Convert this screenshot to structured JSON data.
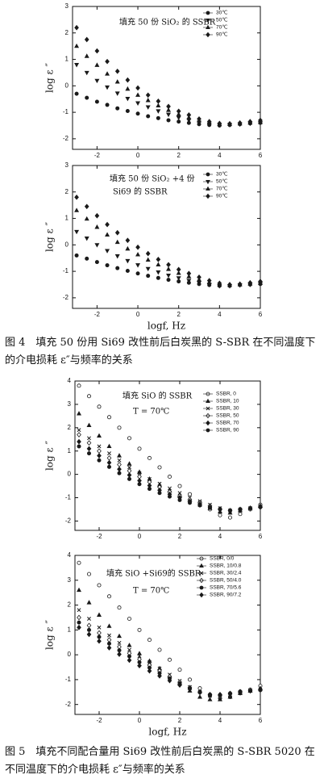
{
  "chart_data": [
    {
      "type": "scatter",
      "ylabel": "log ε ″",
      "annotations": [
        "填充 50 份 SiO₂ 的 SSBR"
      ],
      "x": [
        -3,
        -2.5,
        -2,
        -1.5,
        -1,
        -0.5,
        0,
        0.5,
        1,
        1.5,
        2,
        2.5,
        3,
        3.5,
        4,
        4.5,
        5,
        5.5,
        6
      ],
      "xlim": [
        -3.2,
        6
      ],
      "xticks": [
        -2,
        0,
        2,
        4,
        6
      ],
      "ylim": [
        -2.4,
        3
      ],
      "yticks": [
        3,
        2,
        1,
        0,
        -1,
        -2
      ],
      "series": [
        {
          "name": "30℃",
          "color": "#1a1a1a",
          "marker": "circle",
          "values": [
            -0.3,
            -0.45,
            -0.6,
            -0.72,
            -0.85,
            -0.95,
            -1.05,
            -1.15,
            -1.22,
            -1.3,
            -1.35,
            -1.4,
            -1.45,
            -1.48,
            -1.5,
            -1.48,
            -1.45,
            -1.42,
            -1.4
          ]
        },
        {
          "name": "50℃",
          "color": "#1a1a1a",
          "marker": "triangle-down",
          "values": [
            0.8,
            0.5,
            0.2,
            -0.05,
            -0.28,
            -0.48,
            -0.65,
            -0.8,
            -0.95,
            -1.08,
            -1.2,
            -1.3,
            -1.38,
            -1.45,
            -1.48,
            -1.47,
            -1.45,
            -1.42,
            -1.4
          ]
        },
        {
          "name": "70℃",
          "color": "#1a1a1a",
          "marker": "triangle",
          "values": [
            1.5,
            1.12,
            0.78,
            0.45,
            0.15,
            -0.12,
            -0.35,
            -0.55,
            -0.75,
            -0.92,
            -1.08,
            -1.2,
            -1.32,
            -1.4,
            -1.45,
            -1.45,
            -1.43,
            -1.4,
            -1.38
          ]
        },
        {
          "name": "90℃",
          "color": "#1a1a1a",
          "marker": "diamond",
          "values": [
            2.2,
            1.75,
            1.32,
            0.92,
            0.55,
            0.22,
            -0.08,
            -0.35,
            -0.58,
            -0.78,
            -0.96,
            -1.1,
            -1.25,
            -1.35,
            -1.42,
            -1.43,
            -1.4,
            -1.35,
            -1.3
          ]
        }
      ]
    },
    {
      "type": "scatter",
      "ylabel": "log ε ″",
      "xlabel": "logf, Hz",
      "annotations": [
        "填充 50 份 SiO₂ +4 份",
        "Si69 的 SSBR"
      ],
      "x": [
        -3,
        -2.5,
        -2,
        -1.5,
        -1,
        -0.5,
        0,
        0.5,
        1,
        1.5,
        2,
        2.5,
        3,
        3.5,
        4,
        4.5,
        5,
        5.5,
        6
      ],
      "xlim": [
        -3.2,
        6
      ],
      "xticks": [
        -2,
        0,
        2,
        4,
        6
      ],
      "ylim": [
        -2.4,
        3
      ],
      "yticks": [
        3,
        2,
        1,
        0,
        -1,
        -2
      ],
      "series": [
        {
          "name": "30℃",
          "color": "#1a1a1a",
          "marker": "circle",
          "values": [
            -0.4,
            -0.52,
            -0.65,
            -0.77,
            -0.88,
            -0.98,
            -1.08,
            -1.17,
            -1.25,
            -1.32,
            -1.38,
            -1.43,
            -1.48,
            -1.52,
            -1.55,
            -1.55,
            -1.52,
            -1.5,
            -1.48
          ]
        },
        {
          "name": "50℃",
          "color": "#1a1a1a",
          "marker": "triangle-down",
          "values": [
            0.5,
            0.25,
            0.0,
            -0.22,
            -0.42,
            -0.6,
            -0.76,
            -0.9,
            -1.03,
            -1.15,
            -1.25,
            -1.35,
            -1.43,
            -1.5,
            -1.55,
            -1.55,
            -1.52,
            -1.5,
            -1.47
          ]
        },
        {
          "name": "70℃",
          "color": "#1a1a1a",
          "marker": "triangle",
          "values": [
            1.3,
            0.98,
            0.67,
            0.38,
            0.1,
            -0.15,
            -0.37,
            -0.57,
            -0.75,
            -0.92,
            -1.07,
            -1.2,
            -1.32,
            -1.42,
            -1.5,
            -1.52,
            -1.5,
            -1.47,
            -1.45
          ]
        },
        {
          "name": "90℃",
          "color": "#1a1a1a",
          "marker": "diamond",
          "values": [
            1.8,
            1.45,
            1.1,
            0.77,
            0.46,
            0.17,
            -0.09,
            -0.33,
            -0.55,
            -0.75,
            -0.93,
            -1.08,
            -1.22,
            -1.35,
            -1.45,
            -1.5,
            -1.48,
            -1.43,
            -1.38
          ]
        }
      ]
    },
    {
      "type": "scatter",
      "ylabel": "log ε ″",
      "annotations": [
        "填充 SiO 的 SSBR",
        "T = 70℃"
      ],
      "x": [
        -3,
        -2.5,
        -2,
        -1.5,
        -1,
        -0.5,
        0,
        0.5,
        1,
        1.5,
        2,
        2.5,
        3,
        3.5,
        4,
        4.5,
        5,
        5.5,
        6
      ],
      "xlim": [
        -3.2,
        6
      ],
      "xticks": [
        -2,
        0,
        2,
        4,
        6
      ],
      "ylim": [
        -2.4,
        4
      ],
      "yticks": [
        4,
        3,
        2,
        1,
        0,
        -1,
        -2
      ],
      "series": [
        {
          "name": "SSBR, 0",
          "color": "#1a1a1a",
          "marker": "circle-open",
          "values": [
            3.8,
            3.35,
            2.9,
            2.45,
            2.0,
            1.55,
            1.1,
            0.7,
            0.3,
            -0.1,
            -0.5,
            -0.85,
            -1.2,
            -1.5,
            -1.75,
            -1.85,
            -1.7,
            -1.5,
            -1.3
          ]
        },
        {
          "name": "SSBR, 10",
          "color": "#1a1a1a",
          "marker": "triangle",
          "values": [
            2.6,
            2.1,
            1.65,
            1.2,
            0.8,
            0.45,
            0.1,
            -0.2,
            -0.45,
            -0.7,
            -0.9,
            -1.1,
            -1.3,
            -1.45,
            -1.6,
            -1.65,
            -1.55,
            -1.45,
            -1.35
          ]
        },
        {
          "name": "SSBR, 30",
          "color": "#1a1a1a",
          "marker": "x",
          "values": [
            1.9,
            1.55,
            1.2,
            0.9,
            0.6,
            0.3,
            0.05,
            -0.2,
            -0.4,
            -0.6,
            -0.8,
            -1.0,
            -1.15,
            -1.3,
            -1.45,
            -1.55,
            -1.5,
            -1.45,
            -1.4
          ]
        },
        {
          "name": "SSBR, 50",
          "color": "#1a1a1a",
          "marker": "diamond-open",
          "values": [
            1.7,
            1.35,
            1.0,
            0.7,
            0.42,
            0.15,
            -0.1,
            -0.33,
            -0.55,
            -0.75,
            -0.92,
            -1.08,
            -1.22,
            -1.35,
            -1.48,
            -1.55,
            -1.5,
            -1.45,
            -1.4
          ]
        },
        {
          "name": "SSBR, 70",
          "color": "#1a1a1a",
          "marker": "diamond",
          "values": [
            1.4,
            1.1,
            0.8,
            0.5,
            0.22,
            -0.03,
            -0.27,
            -0.48,
            -0.68,
            -0.85,
            -1.0,
            -1.15,
            -1.28,
            -1.4,
            -1.5,
            -1.55,
            -1.5,
            -1.45,
            -1.4
          ]
        },
        {
          "name": "SSBR, 90",
          "color": "#1a1a1a",
          "marker": "circle",
          "values": [
            1.2,
            0.9,
            0.6,
            0.32,
            0.05,
            -0.2,
            -0.42,
            -0.62,
            -0.8,
            -0.95,
            -1.1,
            -1.22,
            -1.33,
            -1.43,
            -1.5,
            -1.55,
            -1.5,
            -1.45,
            -1.38
          ]
        }
      ]
    },
    {
      "type": "scatter",
      "ylabel": "log ε ″",
      "xlabel": "logf, Hz",
      "annotations": [
        "填充 SiO +Si69的 SSBR",
        "T = 70℃"
      ],
      "x": [
        -3,
        -2.5,
        -2,
        -1.5,
        -1,
        -0.5,
        0,
        0.5,
        1,
        1.5,
        2,
        2.5,
        3,
        3.5,
        4,
        4.5,
        5,
        5.5,
        6
      ],
      "xlim": [
        -3.2,
        6
      ],
      "xticks": [
        -2,
        0,
        2,
        4,
        6
      ],
      "ylim": [
        -2.4,
        4
      ],
      "yticks": [
        4,
        3,
        2,
        1,
        0,
        -1,
        -2
      ],
      "series": [
        {
          "name": "SSBR, 0/0",
          "color": "#1a1a1a",
          "marker": "circle-open",
          "values": [
            3.7,
            3.25,
            2.8,
            2.35,
            1.9,
            1.45,
            1.0,
            0.6,
            0.2,
            -0.2,
            -0.6,
            -1.0,
            -1.35,
            -1.65,
            -1.75,
            -1.7,
            -1.55,
            -1.4,
            -1.25
          ]
        },
        {
          "name": "SSBR, 10/0.8",
          "color": "#1a1a1a",
          "marker": "triangle",
          "values": [
            2.6,
            2.1,
            1.6,
            1.15,
            0.75,
            0.38,
            0.05,
            -0.25,
            -0.55,
            -0.85,
            -1.15,
            -1.45,
            -1.7,
            -1.8,
            -1.8,
            -1.7,
            -1.55,
            -1.45,
            -1.35
          ]
        },
        {
          "name": "SSBR, 30/2.4",
          "color": "#1a1a1a",
          "marker": "x",
          "values": [
            1.8,
            1.45,
            1.1,
            0.78,
            0.48,
            0.2,
            -0.05,
            -0.3,
            -0.55,
            -0.8,
            -1.05,
            -1.3,
            -1.5,
            -1.65,
            -1.7,
            -1.6,
            -1.5,
            -1.45,
            -1.4
          ]
        },
        {
          "name": "SSBR, 50/4.0",
          "color": "#1a1a1a",
          "marker": "diamond-open",
          "values": [
            1.5,
            1.18,
            0.88,
            0.6,
            0.32,
            0.06,
            -0.18,
            -0.42,
            -0.65,
            -0.88,
            -1.1,
            -1.32,
            -1.5,
            -1.62,
            -1.65,
            -1.58,
            -1.5,
            -1.45,
            -1.4
          ]
        },
        {
          "name": "SSBR, 70/5.6",
          "color": "#1a1a1a",
          "marker": "circle",
          "values": [
            1.3,
            1.0,
            0.72,
            0.45,
            0.18,
            -0.06,
            -0.3,
            -0.52,
            -0.74,
            -0.95,
            -1.15,
            -1.35,
            -1.5,
            -1.6,
            -1.62,
            -1.55,
            -1.48,
            -1.45,
            -1.42
          ]
        },
        {
          "name": "SSBR, 90/7.2",
          "color": "#1a1a1a",
          "marker": "diamond",
          "values": [
            1.1,
            0.82,
            0.55,
            0.28,
            0.02,
            -0.22,
            -0.44,
            -0.65,
            -0.85,
            -1.04,
            -1.22,
            -1.38,
            -1.52,
            -1.6,
            -1.6,
            -1.55,
            -1.48,
            -1.45,
            -1.42
          ]
        }
      ]
    }
  ],
  "captions": [
    "图 4　填充 50 份用 Si69 改性前后白炭黑的 S-SBR 在不同温度下的介电损耗 ε″与频率的关系",
    "图 5　填充不同配合量用 Si69 改性前后白炭黑的 S-SBR 5020 在不同温度下的介电损耗 ε″与频率的关系"
  ]
}
